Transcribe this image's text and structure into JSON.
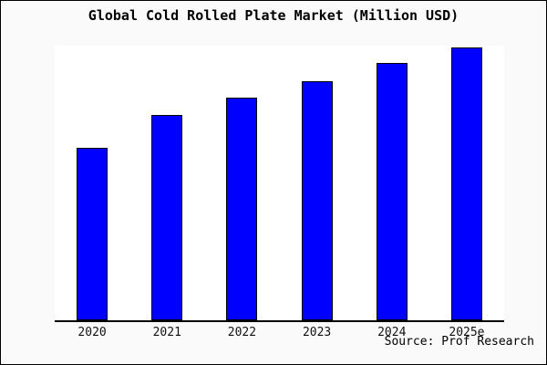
{
  "window": {
    "background_color": "#fafafa",
    "frame_border_color": "#000000"
  },
  "chart": {
    "title": "Global Cold Rolled Plate Market (Million USD)",
    "source": "Source: Prof Research",
    "plot_background": "#ffffff",
    "axis_color": "#000000",
    "bar_fill_color": "#0000ff",
    "bar_border_color": "#000000"
  },
  "chart_data": {
    "type": "bar",
    "title": "Global Cold Rolled Plate Market (Million USD)",
    "categories": [
      "2020",
      "2021",
      "2022",
      "2023",
      "2024",
      "2025e"
    ],
    "values": [
      63,
      75,
      81.5,
      87.5,
      94,
      100
    ],
    "value_note": "No y-axis scale is rendered in the image; values are relative bar heights estimated from pixels, indexed to 2025e = 100",
    "xlabel": "",
    "ylabel": "",
    "ylim": [
      0,
      100.5
    ],
    "grid": false,
    "legend": false,
    "axes_shown": [
      "bottom"
    ],
    "annotations": [
      "Source: Prof Research"
    ],
    "bar_color": "#0000ff"
  }
}
